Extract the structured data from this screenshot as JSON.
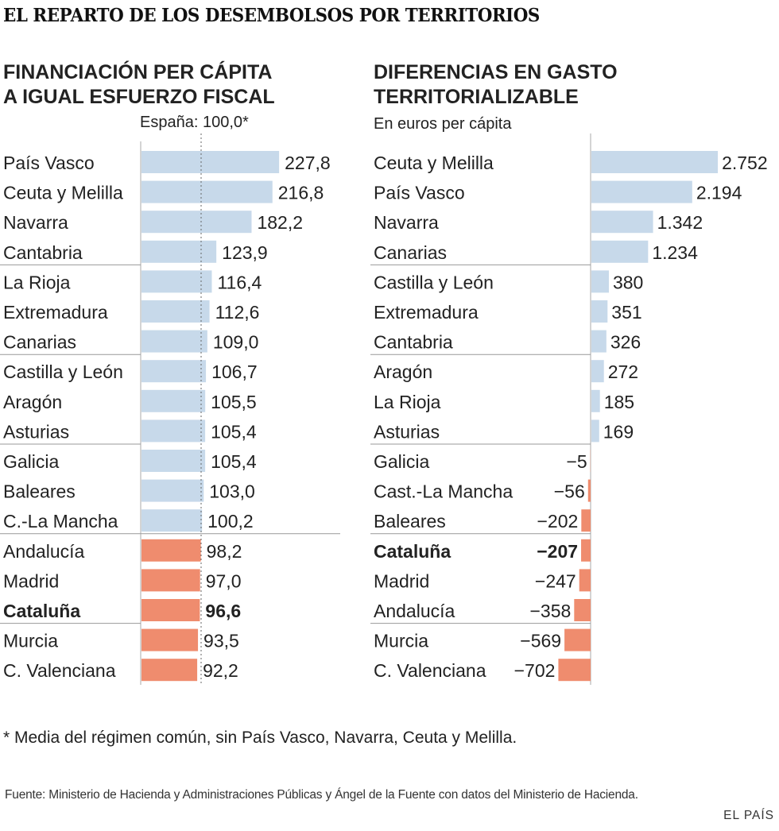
{
  "header": {
    "title": "EL REPARTO DE LOS DESEMBOLSOS POR TERRITORIOS"
  },
  "colors": {
    "positive": "#c7d9ea",
    "negative": "#ef8c6e",
    "text": "#222222",
    "rule": "#999999"
  },
  "left_panel": {
    "title_line1": "FINANCIACIÓN PER CÁPITA",
    "title_line2": "A IGUAL ESFUERZO FISCAL",
    "reference_label": "España: 100,0*"
  },
  "right_panel": {
    "title_line1": "DIFERENCIAS EN GASTO",
    "title_line2": "TERRITORIALIZABLE",
    "subtitle": "En euros per cápita"
  },
  "footer": {
    "footnote": "* Media del régimen común, sin País Vasco, Navarra, Ceuta y Melilla.",
    "source": "Fuente: Ministerio de Hacienda y Administraciones Públicas y Ángel de la Fuente con datos del Ministerio de Hacienda.",
    "brand": "EL PAÍS"
  },
  "chart_data": [
    {
      "type": "bar",
      "orientation": "horizontal",
      "title": "FINANCIACIÓN PER CÁPITA A IGUAL ESFUERZO FISCAL",
      "reference": {
        "label": "España: 100,0*",
        "value": 100.0
      },
      "categories": [
        "País Vasco",
        "Ceuta y Melilla",
        "Navarra",
        "Cantabria",
        "La Rioja",
        "Extremadura",
        "Canarias",
        "Castilla y León",
        "Aragón",
        "Asturias",
        "Galicia",
        "Baleares",
        "C.-La Mancha",
        "Andalucía",
        "Madrid",
        "Cataluña",
        "Murcia",
        "C. Valenciana"
      ],
      "values": [
        227.8,
        216.8,
        182.2,
        123.9,
        116.4,
        112.6,
        109.0,
        106.7,
        105.5,
        105.4,
        105.4,
        103.0,
        100.2,
        98.2,
        97.0,
        96.6,
        93.5,
        92.2
      ],
      "value_labels": [
        "227,8",
        "216,8",
        "182,2",
        "123,9",
        "116,4",
        "112,6",
        "109,0",
        "106,7",
        "105,5",
        "105,4",
        "105,4",
        "103,0",
        "100,2",
        "98,2",
        "97,0",
        "96,6",
        "93,5",
        "92,2"
      ],
      "highlight": "Cataluña",
      "xlim": [
        0,
        230
      ]
    },
    {
      "type": "bar",
      "orientation": "horizontal",
      "title": "DIFERENCIAS EN GASTO TERRITORIALIZABLE",
      "subtitle": "En euros per cápita",
      "categories": [
        "Ceuta y Melilla",
        "País Vasco",
        "Navarra",
        "Canarias",
        "Castilla y León",
        "Extremadura",
        "Cantabria",
        "Aragón",
        "La Rioja",
        "Asturias",
        "Galicia",
        "Cast.-La Mancha",
        "Baleares",
        "Cataluña",
        "Madrid",
        "Andalucía",
        "Murcia",
        "C. Valenciana"
      ],
      "values": [
        2752,
        2194,
        1342,
        1234,
        380,
        351,
        326,
        272,
        185,
        169,
        -5,
        -56,
        -202,
        -207,
        -247,
        -358,
        -569,
        -702
      ],
      "value_labels": [
        "2.752",
        "2.194",
        "1.342",
        "1.234",
        "380",
        "351",
        "326",
        "272",
        "185",
        "169",
        "−5",
        "−56",
        "−202",
        "−207",
        "−247",
        "−358",
        "−569",
        "−702"
      ],
      "highlight": "Cataluña",
      "xlim": [
        -702,
        2752
      ]
    }
  ]
}
